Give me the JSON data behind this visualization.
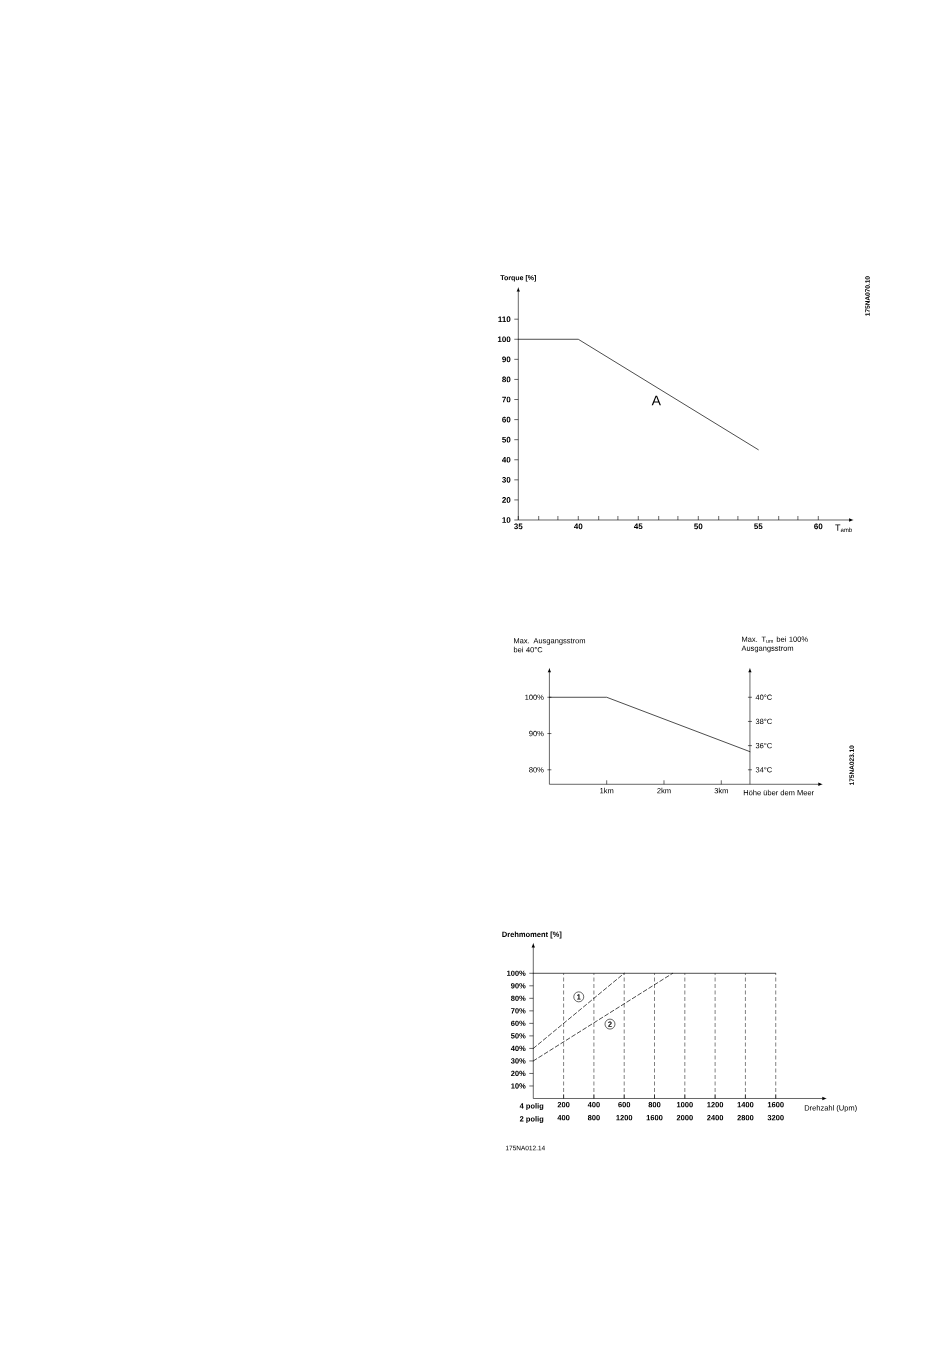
{
  "chart_data": [
    {
      "type": "line",
      "ylabel": "Torque [%]",
      "xlabel": "T$_{amb}$",
      "x": [
        35,
        40,
        55
      ],
      "series": [
        {
          "name": "A",
          "color": "#000000",
          "values": [
            100,
            100,
            45
          ]
        }
      ],
      "xlim": [
        35,
        62.6
      ],
      "ylim": [
        10,
        124
      ],
      "xticks": [
        35,
        {
          "value": 36.7,
          "label": null
        },
        {
          "value": 38.3,
          "label": null
        },
        40,
        {
          "value": 41.7,
          "label": null
        },
        {
          "value": 43.3,
          "label": null
        },
        45,
        {
          "value": 46.7,
          "label": null
        },
        {
          "value": 48.3,
          "label": null
        },
        50,
        {
          "value": 51.7,
          "label": null
        },
        {
          "value": 53.3,
          "label": null
        },
        55,
        {
          "value": 56.7,
          "label": null
        },
        {
          "value": 58.3,
          "label": null
        },
        60
      ],
      "yticks": [
        10,
        20,
        30,
        40,
        50,
        60,
        70,
        80,
        90,
        100,
        110
      ],
      "annotations": [
        "175NA070.10"
      ]
    },
    {
      "type": "line",
      "ylabel": "Max. Ausgangsstrom bei 40°C",
      "y2label": "Max. T$_{um}$ bei 100% Ausgangsstrom",
      "xlabel": "Höhe über dem Meer",
      "x": [
        0,
        1,
        3.5
      ],
      "values": [
        100,
        100,
        85
      ],
      "color": "#000000",
      "xlim": [
        0,
        4.7
      ],
      "ylim": [
        76,
        107
      ],
      "xticks": [
        {
          "value": 1,
          "label": "1km"
        },
        {
          "value": 2,
          "label": "2km"
        },
        {
          "value": 3,
          "label": "3km"
        }
      ],
      "yticks": [
        {
          "value": 80,
          "label": "80%"
        },
        {
          "value": 90,
          "label": "90%"
        },
        {
          "value": 100,
          "label": "100%"
        }
      ],
      "y2lim": [
        32.8,
        42.1
      ],
      "y2ticks": [
        {
          "value": 34,
          "label": "34°C"
        },
        {
          "value": 36,
          "label": "36°C"
        },
        {
          "value": 38,
          "label": "38°C"
        },
        {
          "value": 40,
          "label": "40°C"
        }
      ],
      "annotations": [
        "175NA023.10"
      ]
    },
    {
      "type": "line",
      "ylabel": "Drehmoment [%]",
      "xlabel": "4 polig",
      "x2label": "2 polig",
      "series": [
        {
          "name": "1",
          "color": "#000000",
          "line_style": "dashed",
          "x": [
            0,
            600
          ],
          "values": [
            40,
            100
          ]
        },
        {
          "name": "2",
          "color": "#000000",
          "line_style": "dashed",
          "x": [
            0,
            920
          ],
          "values": [
            30,
            100
          ]
        },
        {
          "color": "#000000",
          "line_style": "solid",
          "x": [
            0,
            1600
          ],
          "values": [
            100,
            100
          ]
        }
      ],
      "xlim": [
        0,
        1910
      ],
      "ylim": [
        0,
        121
      ],
      "xticks": [
        200,
        400,
        600,
        800,
        1000,
        1200,
        1400,
        1600
      ],
      "x2lim": [
        0,
        3820
      ],
      "x2ticks": [
        400,
        800,
        1200,
        1600,
        2000,
        2400,
        2800,
        3200
      ],
      "yticks": [
        {
          "value": 10,
          "label": "10%"
        },
        {
          "value": 20,
          "label": "20%"
        },
        {
          "value": 30,
          "label": "30%"
        },
        {
          "value": 40,
          "label": "40%"
        },
        {
          "value": 50,
          "label": "50%"
        },
        {
          "value": 60,
          "label": "60%"
        },
        {
          "value": 70,
          "label": "70%"
        },
        {
          "value": 80,
          "label": "80%"
        },
        {
          "value": 90,
          "label": "90%"
        },
        {
          "value": 100,
          "label": "100%"
        }
      ],
      "grid": "x",
      "annotations": [
        "Drehzahl (Upm)",
        "175NA012.14"
      ]
    }
  ]
}
